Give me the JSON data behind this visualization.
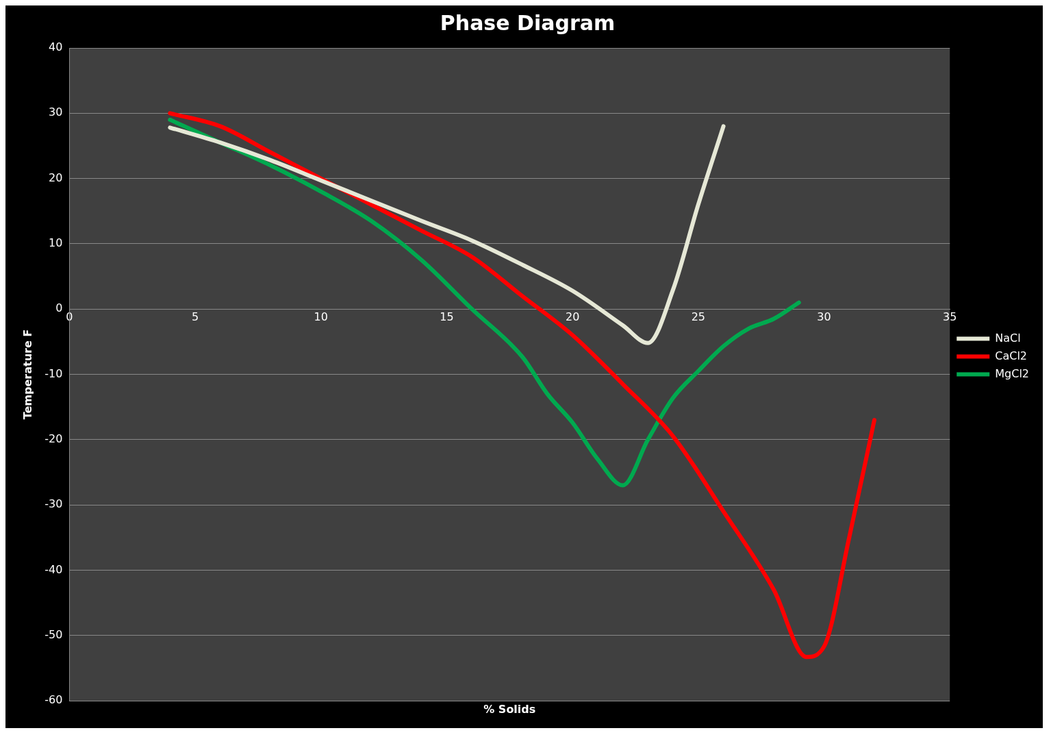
{
  "chart_data": {
    "type": "line",
    "title": "Phase Diagram",
    "xlabel": "% Solids",
    "ylabel": "Temperature F",
    "xlim": [
      0,
      35
    ],
    "xticks": [
      0,
      5,
      10,
      15,
      20,
      25,
      30,
      35
    ],
    "ylim": [
      -60,
      40
    ],
    "yticks": [
      -60,
      -50,
      -40,
      -30,
      -20,
      -10,
      0,
      10,
      20,
      30,
      40
    ],
    "grid": "y",
    "legend": "right",
    "marker": "none",
    "series": [
      {
        "name": "NaCl",
        "color": "#e6e8d6",
        "x": [
          4,
          6,
          8,
          10,
          12,
          14,
          16,
          18,
          20,
          22,
          23,
          24,
          25,
          26
        ],
        "values": [
          27.8,
          25.5,
          22.8,
          19.7,
          16.6,
          13.5,
          10.5,
          6.8,
          2.8,
          -2.5,
          -5.2,
          3,
          16,
          28
        ]
      },
      {
        "name": "CaCl2",
        "color": "#ff0000",
        "x": [
          4,
          6,
          8,
          10,
          12,
          14,
          16,
          18,
          20,
          22,
          24,
          26,
          28,
          29.3,
          30,
          31,
          32
        ],
        "values": [
          30,
          28,
          24,
          20,
          16,
          12,
          8,
          2,
          -4,
          -11.5,
          -19.5,
          -31,
          -43,
          -53.3,
          -51.7,
          -35,
          -17
        ]
      },
      {
        "name": "MgCl2",
        "color": "#00a94f",
        "x": [
          4,
          6,
          8,
          10,
          12,
          14,
          16,
          18,
          19,
          20,
          21,
          22,
          23,
          24,
          25,
          26,
          27,
          28,
          29
        ],
        "values": [
          29,
          25.5,
          22,
          18,
          13.5,
          7.5,
          0,
          -7.3,
          -13,
          -17.4,
          -23,
          -27,
          -20,
          -13.6,
          -9.5,
          -5.7,
          -3,
          -1.5,
          1
        ]
      }
    ]
  }
}
